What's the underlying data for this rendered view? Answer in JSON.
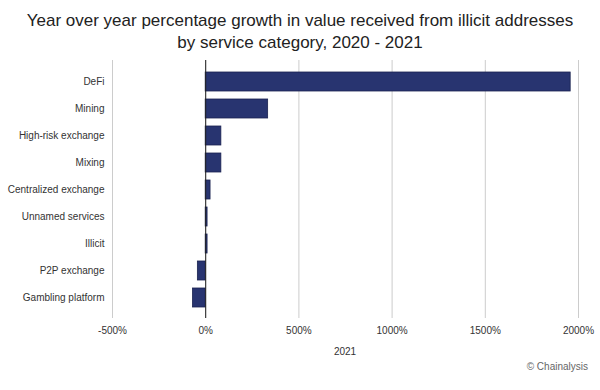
{
  "chart_data": {
    "type": "bar",
    "title": "Year over year percentage growth in value received from illicit addresses by service category, 2020 - 2021",
    "categories": [
      "DeFi",
      "Mining",
      "High-risk exchange",
      "Mixing",
      "Centralized exchange",
      "Unnamed services",
      "Illicit",
      "P2P exchange",
      "Gambling platform"
    ],
    "values": [
      1958,
      335,
      84,
      84,
      26,
      10,
      10,
      -42,
      -68
    ],
    "color": "#283470",
    "orientation": "horizontal",
    "xlim": [
      -500,
      2000
    ],
    "xticks": [
      {
        "value": -500,
        "label": "-500%"
      },
      {
        "value": 0,
        "label": "0%"
      },
      {
        "value": 500,
        "label": "500%"
      },
      {
        "value": 1000,
        "label": "1000%"
      },
      {
        "value": 1500,
        "label": "1500%"
      },
      {
        "value": 2000,
        "label": "2000%"
      }
    ],
    "xlabel": "2021",
    "grid": true,
    "caption": "© Chainalysis"
  }
}
